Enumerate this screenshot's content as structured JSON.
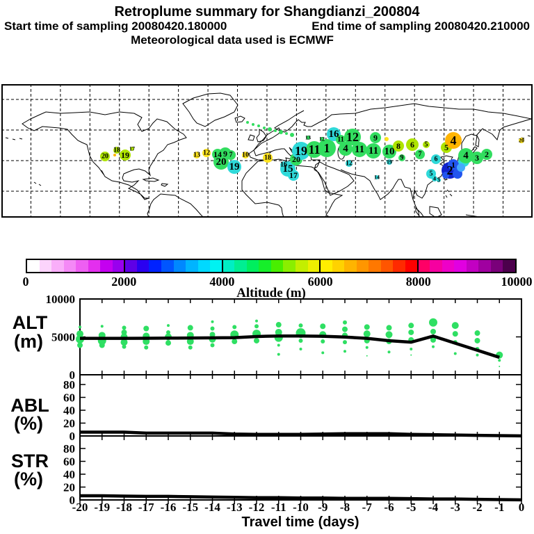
{
  "header": {
    "title": "Retroplume summary for Shangdianzi_200804",
    "start_label": "Start time of sampling 20080420.180000",
    "end_label": "End time of sampling 20080420.210000",
    "met_label": "Meteorological data used is ECMWF"
  },
  "colorbar": {
    "title": "Altitude (m)",
    "min": 0,
    "max": 10000,
    "ticks": [
      "0",
      "2000",
      "4000",
      "6000",
      "8000",
      "10000"
    ],
    "colors": [
      "#ffffff",
      "#fcd4fc",
      "#f9aef9",
      "#f489f6",
      "#ee5ff2",
      "#e32fee",
      "#c400f0",
      "#9900ee",
      "#5f00e6",
      "#2a00f0",
      "#0022ff",
      "#0055ff",
      "#0088ff",
      "#00b4ff",
      "#00d9ff",
      "#00f2f2",
      "#00eec4",
      "#00ee92",
      "#00ee5e",
      "#16ee2a",
      "#49ee00",
      "#8aee00",
      "#c3ee00",
      "#eeee00",
      "#ffee00",
      "#ffd200",
      "#ffb400",
      "#ff9600",
      "#ff7800",
      "#ff5500",
      "#ff2a00",
      "#ff0000",
      "#ff0066",
      "#f600a0",
      "#ee00c8",
      "#e100e1",
      "#c200c2",
      "#a000a0",
      "#7a007a",
      "#4c004c"
    ]
  },
  "palette": {
    "yg": "#aee400",
    "ye": "#ffe41e",
    "gr": "#32dd5f",
    "cy": "#2fd9d9",
    "or": "#ffb400",
    "bl": "#2255ee",
    "db": "#1122cc",
    "lb": "#44aaff"
  },
  "chart_data": [
    {
      "type": "scatter",
      "name": "map-plume-circles",
      "note": "retroplume clusters on world map; x,y are page pixels; c is altitude color key; label = travel day",
      "points": [
        [
          151,
          225,
          7,
          "yg",
          "20"
        ],
        [
          165,
          223,
          2,
          "or",
          ""
        ],
        [
          168,
          216,
          5,
          "yg",
          "18"
        ],
        [
          180,
          223,
          8,
          "yg",
          "19"
        ],
        [
          190,
          214,
          3,
          "yg",
          "17"
        ],
        [
          283,
          223,
          5,
          "ye",
          "13"
        ],
        [
          297,
          220,
          6,
          "ye",
          "12"
        ],
        [
          313,
          222,
          8,
          "gr",
          "14"
        ],
        [
          324,
          221,
          9,
          "gr",
          "9"
        ],
        [
          332,
          223,
          7,
          "gr",
          "7"
        ],
        [
          318,
          233,
          11,
          "gr",
          "20"
        ],
        [
          337,
          240,
          10,
          "cy",
          "19"
        ],
        [
          353,
          223,
          5,
          "ye",
          "10"
        ],
        [
          356,
          176,
          2,
          "gr",
          ""
        ],
        [
          364,
          179,
          2,
          "gr",
          ""
        ],
        [
          372,
          181,
          2,
          "gr",
          ""
        ],
        [
          380,
          184,
          2,
          "gr",
          ""
        ],
        [
          388,
          186,
          3,
          "gr",
          ""
        ],
        [
          396,
          188,
          2,
          "gr",
          ""
        ],
        [
          404,
          190,
          3,
          "gr",
          ""
        ],
        [
          412,
          192,
          2,
          "gr",
          ""
        ],
        [
          420,
          194,
          3,
          "gr",
          ""
        ],
        [
          443,
          198,
          3,
          "gr",
          "13"
        ],
        [
          463,
          200,
          3,
          "gr",
          "12"
        ],
        [
          385,
          227,
          7,
          "ye",
          "18"
        ],
        [
          408,
          237,
          5,
          "cy",
          "16"
        ],
        [
          414,
          243,
          11,
          "cy",
          "15"
        ],
        [
          422,
          252,
          8,
          "cy",
          "17"
        ],
        [
          426,
          229,
          9,
          "gr",
          "20"
        ],
        [
          433,
          217,
          13,
          "cy",
          "19"
        ],
        [
          452,
          215,
          12,
          "gr",
          "11"
        ],
        [
          470,
          213,
          13,
          "gr",
          "1"
        ],
        [
          480,
          193,
          10,
          "cy",
          "16"
        ],
        [
          490,
          201,
          7,
          "gr",
          "11"
        ],
        [
          507,
          197,
          12,
          "gr",
          "12"
        ],
        [
          497,
          214,
          10,
          "gr",
          "4"
        ],
        [
          517,
          215,
          11,
          "gr",
          "11"
        ],
        [
          502,
          235,
          5,
          "cy",
          "12"
        ],
        [
          540,
          198,
          8,
          "gr",
          "9"
        ],
        [
          556,
          200,
          3,
          "ye",
          ""
        ],
        [
          537,
          217,
          11,
          "gr",
          "11"
        ],
        [
          560,
          218,
          10,
          "gr",
          "10"
        ],
        [
          560,
          233,
          4,
          "cy",
          "19"
        ],
        [
          573,
          210,
          8,
          "yg",
          "8"
        ],
        [
          578,
          227,
          5,
          "gr",
          "9"
        ],
        [
          542,
          255,
          3,
          "cy",
          "14"
        ],
        [
          593,
          208,
          9,
          "yg",
          "6"
        ],
        [
          613,
          208,
          5,
          "yg",
          "5"
        ],
        [
          604,
          222,
          7,
          "gr",
          "7"
        ],
        [
          642,
          212,
          8,
          "yg",
          "5"
        ],
        [
          652,
          202,
          12,
          "or",
          "4"
        ],
        [
          627,
          229,
          7,
          "cy",
          "6"
        ],
        [
          667,
          232,
          8,
          "cy",
          ""
        ],
        [
          670,
          224,
          11,
          "gr",
          "4"
        ],
        [
          686,
          227,
          9,
          "gr",
          "3"
        ],
        [
          700,
          222,
          8,
          "gr",
          "2"
        ],
        [
          620,
          250,
          7,
          "cy",
          "5"
        ],
        [
          625,
          257,
          4,
          "cy",
          "4"
        ],
        [
          631,
          259,
          3,
          "cy",
          "3"
        ],
        [
          647,
          245,
          12,
          "db",
          "2"
        ],
        [
          652,
          237,
          8,
          "bl",
          "1"
        ],
        [
          658,
          250,
          7,
          "bl",
          ""
        ],
        [
          663,
          241,
          6,
          "lb",
          ""
        ],
        [
          641,
          252,
          5,
          "bl",
          ""
        ],
        [
          750,
          202,
          4,
          "ye",
          "20"
        ]
      ]
    },
    {
      "type": "line",
      "name": "alt-panel",
      "ylabel_1": "ALT",
      "ylabel_2": "(m)",
      "ylim": [
        0,
        10000
      ],
      "yticks": [
        "0",
        "5000",
        "10000"
      ],
      "ytick_values": [
        0,
        5000,
        10000
      ],
      "mean_days": [
        -20,
        -19,
        -18,
        -17,
        -16,
        -15,
        -14,
        -13,
        -12,
        -11,
        -10,
        -9,
        -8,
        -7,
        -6,
        -5,
        -4,
        -3,
        -2,
        -1
      ],
      "mean_values": [
        4800,
        4800,
        4800,
        4820,
        4840,
        4850,
        4870,
        4900,
        5050,
        5120,
        5120,
        5080,
        4980,
        4800,
        4500,
        4300,
        5100,
        4160,
        3230,
        2300
      ],
      "scatter": [
        [
          -20,
          6300,
          2
        ],
        [
          -20,
          5400,
          5
        ],
        [
          -20,
          4700,
          6
        ],
        [
          -20,
          3900,
          4
        ],
        [
          -19,
          6400,
          2
        ],
        [
          -19,
          5200,
          5
        ],
        [
          -19,
          4500,
          6
        ],
        [
          -19,
          3900,
          4
        ],
        [
          -18,
          6200,
          3
        ],
        [
          -18,
          5600,
          4
        ],
        [
          -18,
          5000,
          5
        ],
        [
          -18,
          4300,
          5
        ],
        [
          -18,
          3700,
          3
        ],
        [
          -17,
          6100,
          4
        ],
        [
          -17,
          5100,
          5
        ],
        [
          -17,
          4400,
          5
        ],
        [
          -17,
          3600,
          3
        ],
        [
          -16,
          6500,
          2
        ],
        [
          -16,
          5600,
          3
        ],
        [
          -16,
          5000,
          5
        ],
        [
          -16,
          4200,
          4
        ],
        [
          -15,
          6200,
          4
        ],
        [
          -15,
          5200,
          5
        ],
        [
          -15,
          4400,
          5
        ],
        [
          -15,
          3600,
          3
        ],
        [
          -14,
          7000,
          2
        ],
        [
          -14,
          6100,
          3
        ],
        [
          -14,
          5300,
          4
        ],
        [
          -14,
          4700,
          5
        ],
        [
          -14,
          3900,
          3
        ],
        [
          -13,
          6300,
          3
        ],
        [
          -13,
          5300,
          6
        ],
        [
          -13,
          4400,
          4
        ],
        [
          -12,
          7100,
          2
        ],
        [
          -12,
          6400,
          3
        ],
        [
          -12,
          5400,
          6
        ],
        [
          -12,
          4500,
          4
        ],
        [
          -11,
          6600,
          4
        ],
        [
          -11,
          5600,
          5
        ],
        [
          -11,
          4900,
          6
        ],
        [
          -11,
          3900,
          2
        ],
        [
          -11,
          2700,
          2
        ],
        [
          -10,
          6500,
          3
        ],
        [
          -10,
          5500,
          7
        ],
        [
          -10,
          4500,
          3
        ],
        [
          -10,
          3400,
          2
        ],
        [
          -9,
          6400,
          4
        ],
        [
          -9,
          5300,
          5
        ],
        [
          -9,
          4400,
          3
        ],
        [
          -9,
          2900,
          2
        ],
        [
          -8,
          6900,
          3
        ],
        [
          -8,
          6000,
          4
        ],
        [
          -8,
          5200,
          4
        ],
        [
          -8,
          4300,
          3
        ],
        [
          -8,
          3100,
          2
        ],
        [
          -7,
          6300,
          4
        ],
        [
          -7,
          5400,
          5
        ],
        [
          -7,
          4500,
          4
        ],
        [
          -7,
          3600,
          2
        ],
        [
          -7,
          2500,
          1
        ],
        [
          -6,
          6200,
          4
        ],
        [
          -6,
          5300,
          5
        ],
        [
          -6,
          4400,
          4
        ],
        [
          -6,
          3000,
          2
        ],
        [
          -5,
          6500,
          4
        ],
        [
          -5,
          5600,
          4
        ],
        [
          -5,
          4600,
          4
        ],
        [
          -5,
          3400,
          2
        ],
        [
          -5,
          2600,
          1
        ],
        [
          -4,
          6900,
          6
        ],
        [
          -4,
          5700,
          4
        ],
        [
          -4,
          4600,
          4
        ],
        [
          -4,
          3700,
          2
        ],
        [
          -3,
          6500,
          5
        ],
        [
          -3,
          5400,
          4
        ],
        [
          -3,
          4300,
          3
        ],
        [
          -3,
          2800,
          2
        ],
        [
          -2,
          5500,
          4
        ],
        [
          -2,
          4500,
          4
        ],
        [
          -2,
          3400,
          3
        ],
        [
          -2,
          2600,
          2
        ],
        [
          -1,
          2600,
          5
        ],
        [
          -1,
          1900,
          2
        ],
        [
          -1,
          1100,
          1
        ]
      ]
    },
    {
      "type": "line",
      "name": "abl-panel",
      "ylabel_1": "ABL",
      "ylabel_2": "(%)",
      "ylim": [
        0,
        95
      ],
      "yticks": [
        "0",
        "20",
        "40",
        "60",
        "80"
      ],
      "ytick_values": [
        0,
        20,
        40,
        60,
        80
      ],
      "days": [
        -20,
        -19,
        -18,
        -17,
        -16,
        -15,
        -14,
        -13,
        -12,
        -11,
        -10,
        -9,
        -8,
        -7,
        -6,
        -5,
        -4,
        -3,
        -2,
        -1,
        0
      ],
      "values": [
        6,
        6,
        6,
        4.5,
        4.5,
        4.5,
        4.5,
        3,
        2.5,
        2.5,
        2.5,
        3,
        3.5,
        3.5,
        3.5,
        2.5,
        2,
        1.5,
        1,
        0.5,
        0.2
      ]
    },
    {
      "type": "line",
      "name": "str-panel",
      "ylabel_1": "STR",
      "ylabel_2": "(%)",
      "ylim": [
        0,
        99
      ],
      "yticks": [
        "0",
        "20",
        "40",
        "60",
        "80"
      ],
      "ytick_values": [
        0,
        20,
        40,
        60,
        80
      ],
      "days": [
        -20,
        -19,
        -18,
        -17,
        -16,
        -15,
        -14,
        -13,
        -12,
        -11,
        -10,
        -9,
        -8,
        -7,
        -6,
        -5,
        -4,
        -3,
        -2,
        -1,
        0
      ],
      "values": [
        6.5,
        6.5,
        6,
        5.5,
        5.5,
        5,
        4.5,
        4,
        3.5,
        3.5,
        3,
        3,
        2.5,
        2.5,
        2.5,
        2,
        1.5,
        1.5,
        1,
        0.5,
        0.2
      ]
    }
  ],
  "xaxis": {
    "label": "Travel time (days)",
    "ticks": [
      "-20",
      "-19",
      "-18",
      "-17",
      "-16",
      "-15",
      "-14",
      "-13",
      "-12",
      "-11",
      "-10",
      "-9",
      "-8",
      "-7",
      "-6",
      "-5",
      "-4",
      "-3",
      "-2",
      "-1",
      "0"
    ],
    "tick_values": [
      -20,
      -19,
      -18,
      -17,
      -16,
      -15,
      -14,
      -13,
      -12,
      -11,
      -10,
      -9,
      -8,
      -7,
      -6,
      -5,
      -4,
      -3,
      -2,
      -1,
      0
    ]
  }
}
